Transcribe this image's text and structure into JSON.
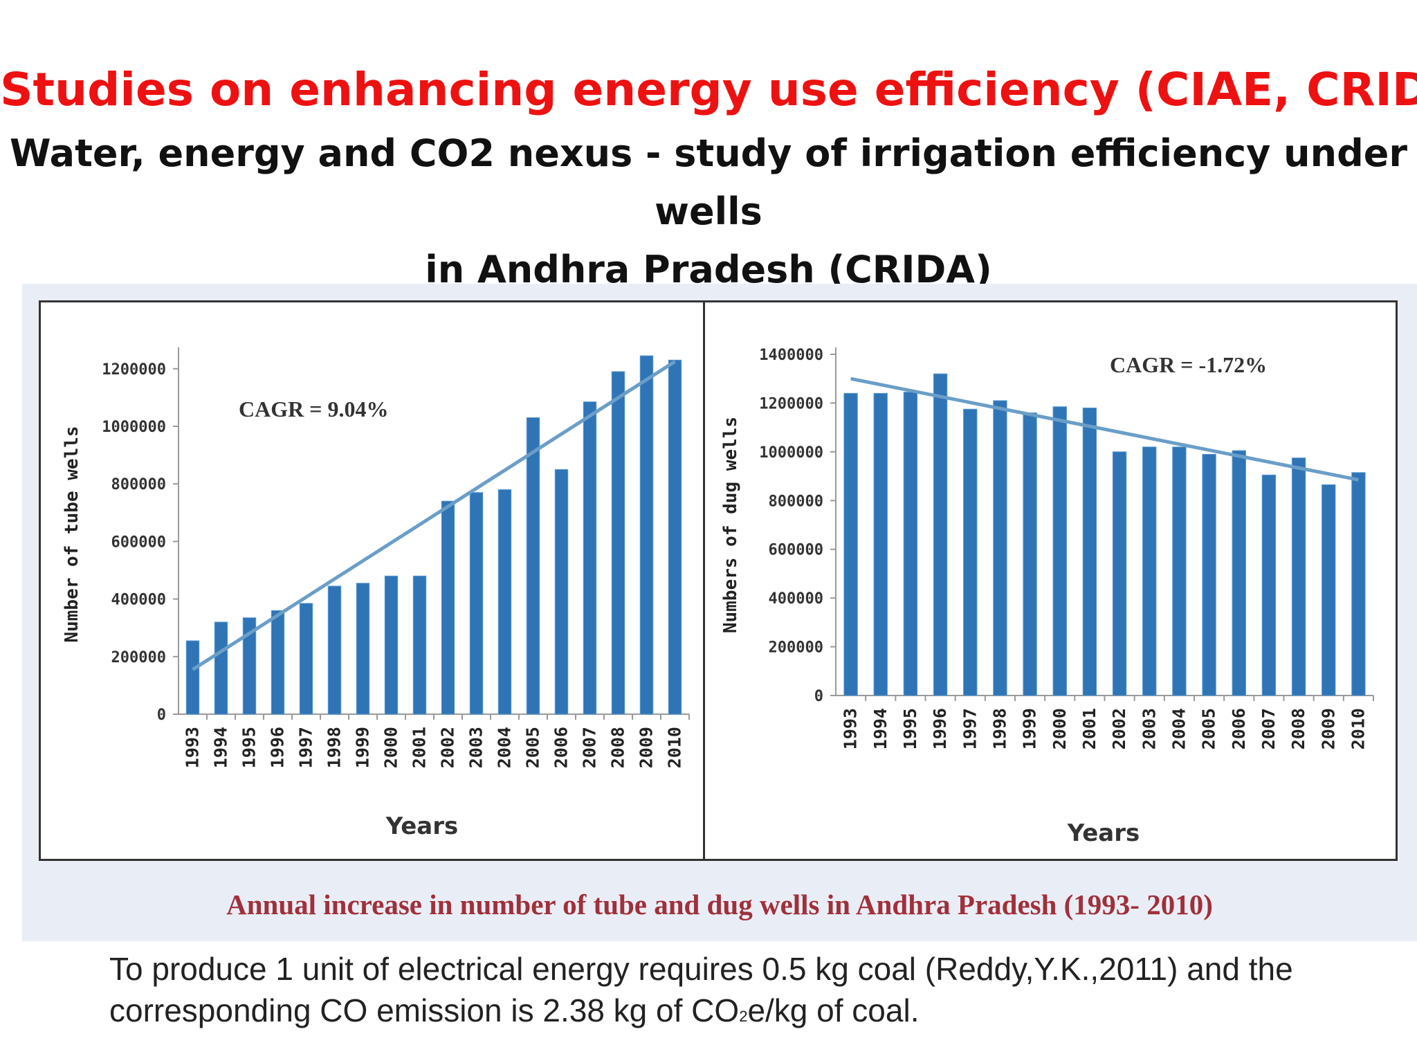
{
  "slide": {
    "title": "Studies on enhancing energy use efficiency (CIAE, CRIDA)",
    "subtitle_line1": "Water, energy and CO2 nexus - study of irrigation efficiency under wells",
    "subtitle_line2": "in Andhra Pradesh (CRIDA)",
    "caption": "Annual increase in number of tube and dug wells in Andhra Pradesh (1993- 2010)",
    "note_part1": "To produce 1 unit of electrical energy requires 0.5 kg coal (Reddy,Y.K.,2011) and the corresponding CO emission is 2.38 kg of CO",
    "note_sub": "2",
    "note_part2": "e/kg of coal."
  },
  "colors": {
    "bar": "#2f74b5",
    "bar_light": "#5b9bd5",
    "trend": "#6a9ec8",
    "axis_text": "#333333",
    "title": "#ee1111",
    "caption": "#a0303a"
  },
  "chart_data": [
    {
      "type": "bar",
      "title": "",
      "annotation": "CAGR = 9.04%",
      "xlabel": "Years",
      "ylabel": "Number of tube wells",
      "categories": [
        "1993",
        "1994",
        "1995",
        "1996",
        "1997",
        "1998",
        "1999",
        "2000",
        "2001",
        "2002",
        "2003",
        "2004",
        "2005",
        "2006",
        "2007",
        "2008",
        "2009",
        "2010"
      ],
      "values": [
        255000,
        320000,
        335000,
        360000,
        385000,
        445000,
        455000,
        480000,
        480000,
        740000,
        770000,
        780000,
        1030000,
        850000,
        1085000,
        1190000,
        1245000,
        1230000
      ],
      "yticks": [
        0,
        200000,
        400000,
        600000,
        800000,
        1000000,
        1200000
      ],
      "ytick_labels": [
        "0",
        "200000",
        "400000",
        "600000",
        "800000",
        "1000000",
        "1200000"
      ],
      "ylim": [
        0,
        1250000
      ],
      "trend": [
        155000,
        1225000
      ],
      "grid": false
    },
    {
      "type": "bar",
      "title": "",
      "annotation": "CAGR = -1.72%",
      "xlabel": "Years",
      "ylabel": "Numbers of dug wells",
      "categories": [
        "1993",
        "1994",
        "1995",
        "1996",
        "1997",
        "1998",
        "1999",
        "2000",
        "2001",
        "2002",
        "2003",
        "2004",
        "2005",
        "2006",
        "2007",
        "2008",
        "2009",
        "2010"
      ],
      "values": [
        1240000,
        1240000,
        1245000,
        1320000,
        1175000,
        1210000,
        1160000,
        1185000,
        1180000,
        1000000,
        1020000,
        1020000,
        990000,
        1005000,
        905000,
        975000,
        865000,
        915000
      ],
      "yticks": [
        0,
        200000,
        400000,
        600000,
        800000,
        1000000,
        1200000,
        1400000
      ],
      "ytick_labels": [
        "0",
        "200000",
        "400000",
        "600000",
        "800000",
        "1000000",
        "1200000",
        "1400000"
      ],
      "ylim": [
        0,
        1400000
      ],
      "trend": [
        1300000,
        885000
      ],
      "grid": false
    }
  ]
}
